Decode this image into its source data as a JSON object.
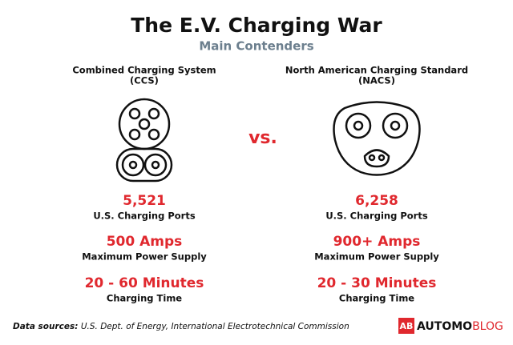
{
  "header": {
    "title": "The E.V. Charging War",
    "subtitle": "Main Contenders"
  },
  "versus": "vs.",
  "columns": [
    {
      "name": [
        "Combined Charging System",
        "(CCS)"
      ],
      "stats": [
        {
          "value": "5,521",
          "label": "U.S. Charging Ports"
        },
        {
          "value": "500 Amps",
          "label": "Maximum Power Supply"
        },
        {
          "value": "20 - 60 Minutes",
          "label": "Charging Time"
        }
      ]
    },
    {
      "name": [
        "North American Charging Standard",
        "(NACS)"
      ],
      "stats": [
        {
          "value": "6,258",
          "label": "U.S. Charging Ports"
        },
        {
          "value": "900+ Amps",
          "label": "Maximum Power Supply"
        },
        {
          "value": "20 - 30 Minutes",
          "label": "Charging Time"
        }
      ]
    }
  ],
  "footer": {
    "sources_label": "Data sources:",
    "sources": "U.S. Dept. of Energy, International Electrotechnical Commission",
    "logo": {
      "icon": "AB",
      "brand": "AUTOMO",
      "suffix": "BLOG"
    }
  }
}
